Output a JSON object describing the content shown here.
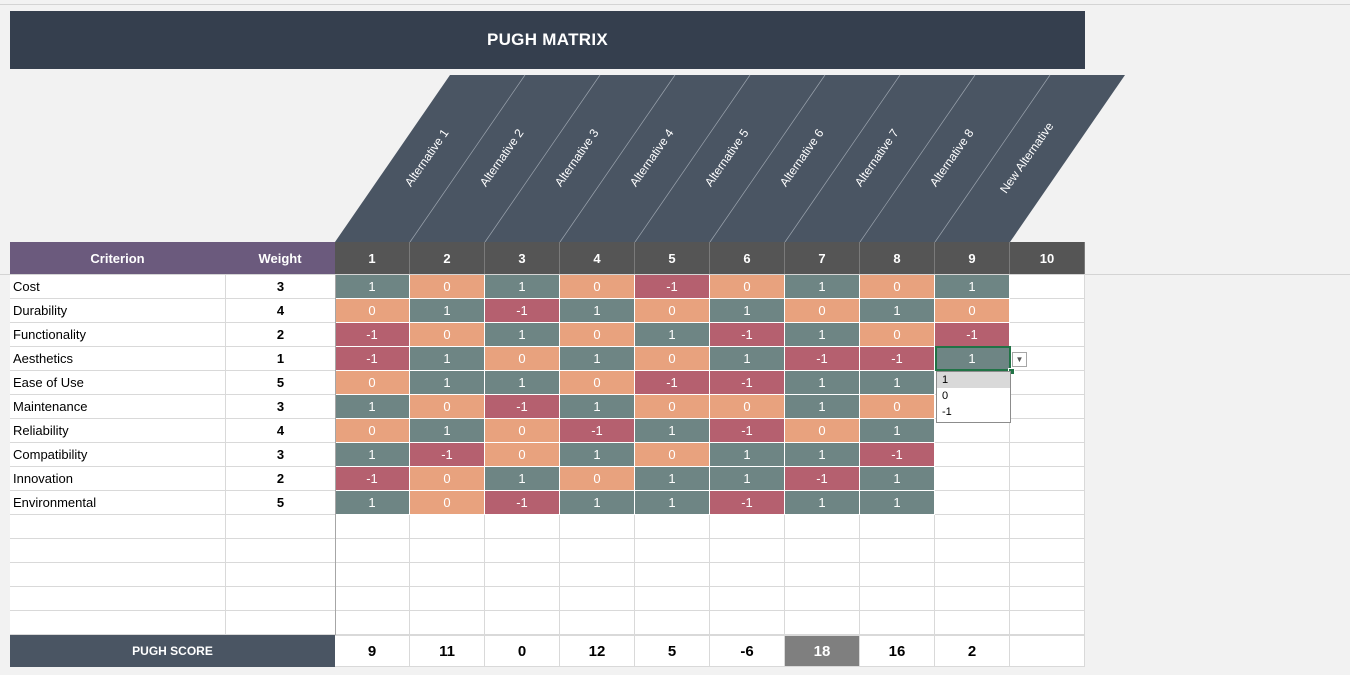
{
  "title": "PUGH MATRIX",
  "header": {
    "criterion": "Criterion",
    "weight": "Weight",
    "alternatives": [
      "Alternative 1",
      "Alternative 2",
      "Alternative 3",
      "Alternative 4",
      "Alternative 5",
      "Alternative 6",
      "Alternative 7",
      "Alternative 8",
      "New Alternative"
    ],
    "numbers": [
      "1",
      "2",
      "3",
      "4",
      "5",
      "6",
      "7",
      "8",
      "9",
      "10"
    ]
  },
  "rows": [
    {
      "criterion": "Cost",
      "weight": "3",
      "scores": [
        "1",
        "0",
        "1",
        "0",
        "-1",
        "0",
        "1",
        "0",
        "1",
        ""
      ]
    },
    {
      "criterion": "Durability",
      "weight": "4",
      "scores": [
        "0",
        "1",
        "-1",
        "1",
        "0",
        "1",
        "0",
        "1",
        "0",
        ""
      ]
    },
    {
      "criterion": "Functionality",
      "weight": "2",
      "scores": [
        "-1",
        "0",
        "1",
        "0",
        "1",
        "-1",
        "1",
        "0",
        "-1",
        ""
      ]
    },
    {
      "criterion": "Aesthetics",
      "weight": "1",
      "scores": [
        "-1",
        "1",
        "0",
        "1",
        "0",
        "1",
        "-1",
        "-1",
        "1",
        ""
      ]
    },
    {
      "criterion": "Ease of Use",
      "weight": "5",
      "scores": [
        "0",
        "1",
        "1",
        "0",
        "-1",
        "-1",
        "1",
        "1",
        "",
        ""
      ]
    },
    {
      "criterion": "Maintenance",
      "weight": "3",
      "scores": [
        "1",
        "0",
        "-1",
        "1",
        "0",
        "0",
        "1",
        "0",
        "",
        ""
      ]
    },
    {
      "criterion": "Reliability",
      "weight": "4",
      "scores": [
        "0",
        "1",
        "0",
        "-1",
        "1",
        "-1",
        "0",
        "1",
        "",
        ""
      ]
    },
    {
      "criterion": "Compatibility",
      "weight": "3",
      "scores": [
        "1",
        "-1",
        "0",
        "1",
        "0",
        "1",
        "1",
        "-1",
        "",
        ""
      ]
    },
    {
      "criterion": "Innovation",
      "weight": "2",
      "scores": [
        "-1",
        "0",
        "1",
        "0",
        "1",
        "1",
        "-1",
        "1",
        "",
        ""
      ]
    },
    {
      "criterion": "Environmental",
      "weight": "5",
      "scores": [
        "1",
        "0",
        "-1",
        "1",
        "1",
        "-1",
        "1",
        "1",
        "",
        ""
      ]
    },
    {
      "criterion": "",
      "weight": "",
      "scores": [
        "",
        "",
        "",
        "",
        "",
        "",
        "",
        "",
        "",
        ""
      ]
    },
    {
      "criterion": "",
      "weight": "",
      "scores": [
        "",
        "",
        "",
        "",
        "",
        "",
        "",
        "",
        "",
        ""
      ]
    },
    {
      "criterion": "",
      "weight": "",
      "scores": [
        "",
        "",
        "",
        "",
        "",
        "",
        "",
        "",
        "",
        ""
      ]
    },
    {
      "criterion": "",
      "weight": "",
      "scores": [
        "",
        "",
        "",
        "",
        "",
        "",
        "",
        "",
        "",
        ""
      ]
    },
    {
      "criterion": "",
      "weight": "",
      "scores": [
        "",
        "",
        "",
        "",
        "",
        "",
        "",
        "",
        "",
        ""
      ]
    }
  ],
  "pugh_score": {
    "label": "PUGH SCORE",
    "values": [
      "9",
      "11",
      "0",
      "12",
      "5",
      "-6",
      "18",
      "16",
      "2",
      ""
    ],
    "highlight_index": 6
  },
  "dropdown": {
    "options": [
      "1",
      "0",
      "-1"
    ],
    "selected": "1"
  },
  "colors": {
    "title_bg": "#353f4e",
    "header_purple": "#6b5a7d",
    "header_num": "#555555",
    "score_positive": "#6e8584",
    "score_zero": "#e8a27e",
    "score_negative": "#b5606f"
  }
}
